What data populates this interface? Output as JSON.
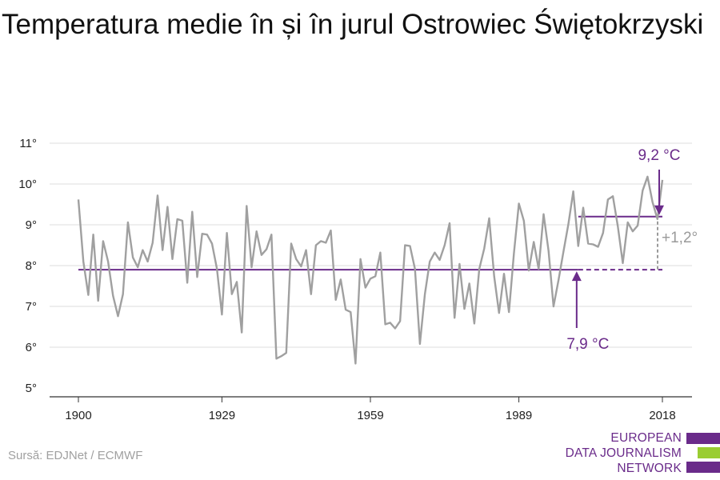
{
  "chart_data": {
    "type": "line",
    "title": "Temperatura medie în și în jurul Ostrowiec Świętokrzyski",
    "x": [
      1900,
      1901,
      1902,
      1903,
      1904,
      1905,
      1906,
      1907,
      1908,
      1909,
      1910,
      1911,
      1912,
      1913,
      1914,
      1915,
      1916,
      1917,
      1918,
      1919,
      1920,
      1921,
      1922,
      1923,
      1924,
      1925,
      1926,
      1927,
      1928,
      1929,
      1930,
      1931,
      1932,
      1933,
      1934,
      1935,
      1936,
      1937,
      1938,
      1939,
      1940,
      1941,
      1942,
      1943,
      1944,
      1945,
      1946,
      1947,
      1948,
      1949,
      1950,
      1951,
      1952,
      1953,
      1954,
      1955,
      1956,
      1957,
      1958,
      1959,
      1960,
      1961,
      1962,
      1963,
      1964,
      1965,
      1966,
      1967,
      1968,
      1969,
      1970,
      1971,
      1972,
      1973,
      1974,
      1975,
      1976,
      1977,
      1978,
      1979,
      1980,
      1981,
      1982,
      1983,
      1984,
      1985,
      1986,
      1987,
      1988,
      1989,
      1990,
      1991,
      1992,
      1993,
      1994,
      1995,
      1996,
      1997,
      1998,
      1999,
      2000,
      2001,
      2002,
      2003,
      2004,
      2005,
      2006,
      2007,
      2008,
      2009,
      2010,
      2011,
      2012,
      2013,
      2014,
      2015,
      2016,
      2017,
      2018
    ],
    "series": [
      {
        "values": [
          9.62,
          8.1,
          7.28,
          8.76,
          7.14,
          8.6,
          8.1,
          7.26,
          6.76,
          7.3,
          9.06,
          8.2,
          7.96,
          8.38,
          8.1,
          8.56,
          9.72,
          8.38,
          9.44,
          8.16,
          9.14,
          9.1,
          7.58,
          9.32,
          7.72,
          8.78,
          8.76,
          8.54,
          7.92,
          6.8,
          8.8,
          7.3,
          7.6,
          6.36,
          9.46,
          7.96,
          8.84,
          8.26,
          8.4,
          8.76,
          5.72,
          5.78,
          5.86,
          8.54,
          8.16,
          7.98,
          8.38,
          7.3,
          8.5,
          8.6,
          8.56,
          8.86,
          7.16,
          7.66,
          6.92,
          6.86,
          5.6,
          8.16,
          7.46,
          7.68,
          7.74,
          8.32,
          6.56,
          6.6,
          6.46,
          6.64,
          8.5,
          8.48,
          7.92,
          6.08,
          7.3,
          8.1,
          8.32,
          8.14,
          8.5,
          9.04,
          6.72,
          8.04,
          6.94,
          7.56,
          6.58,
          7.92,
          8.42,
          9.16,
          7.74,
          6.84,
          7.8,
          6.86,
          8.3,
          9.52,
          9.1,
          7.88,
          8.58,
          7.92,
          9.26,
          8.36,
          7.0,
          7.64,
          8.34,
          9.02,
          9.82,
          8.48,
          9.42,
          8.54,
          8.52,
          8.46,
          8.8,
          9.62,
          9.7,
          8.96,
          8.06,
          9.06,
          8.84,
          8.98,
          9.84,
          10.18,
          9.56,
          9.14,
          10.1
        ]
      }
    ],
    "ylim": [
      5,
      11
    ],
    "yticks": [
      5,
      6,
      7,
      8,
      9,
      10,
      11
    ],
    "ytick_labels": [
      "5°",
      "6°",
      "7°",
      "8°",
      "9°",
      "10°",
      "11°"
    ],
    "xticks": [
      1900,
      1929,
      1959,
      1989,
      2018
    ],
    "xtick_labels": [
      "1900",
      "1929",
      "1959",
      "1989",
      "2018"
    ],
    "baseline": {
      "value": 7.9,
      "from": 1900,
      "to": 2018,
      "label": "7,9 °C"
    },
    "recent_mean": {
      "value": 9.2,
      "from": 2001,
      "to": 2018,
      "label": "9,2 °C"
    },
    "difference_label": "+1,2°",
    "grid": true
  },
  "source": "Sursă: EDJNet / ECMWF",
  "logo": {
    "lines": [
      "EUROPEAN",
      "DATA JOURNALISM",
      "NETWORK"
    ]
  },
  "colors": {
    "line": "#a0a0a0",
    "baseline": "#6a2b8a",
    "annotation_purple": "#6a2b8a",
    "grid": "#dddddd",
    "axis": "#333333",
    "logo_purple": "#6a2b8a",
    "logo_green": "#9acd32",
    "difference": "#9a9a9a"
  }
}
